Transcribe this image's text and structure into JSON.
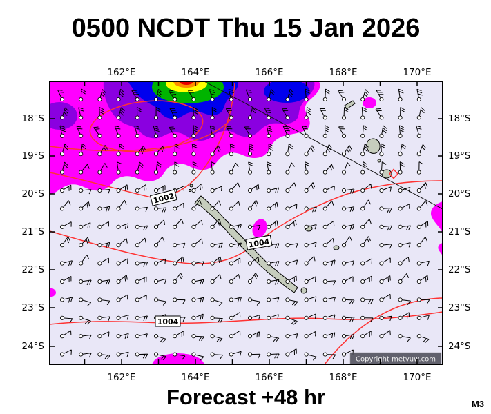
{
  "header": {
    "title": "0500 NCDT Thu 15 Jan 2026"
  },
  "footer": {
    "forecast_label": "Forecast +48 hr",
    "model_tag": "M3"
  },
  "map": {
    "copyright_text": "Copyright metvuw.com",
    "axes": {
      "lon_labels": [
        "162°E",
        "164°E",
        "166°E",
        "168°E",
        "170°E"
      ],
      "lat_labels": [
        "18°S",
        "19°S",
        "20°S",
        "21°S",
        "22°S",
        "23°S",
        "24°S"
      ]
    },
    "isobars": [
      {
        "label": "1002"
      },
      {
        "label": "1004"
      },
      {
        "label": "1004"
      }
    ],
    "colors": {
      "background": "#e9e7f7",
      "rain_level_1": "#ff00ff",
      "rain_level_2": "#8a00e0",
      "rain_level_3": "#0000ee",
      "rain_level_4": "#00b400",
      "rain_level_5": "#ffff00",
      "rain_level_6": "#ff8c00",
      "rain_level_7": "#e80000",
      "isobar": "#ff3333",
      "land": "#c6cdbd",
      "frame": "#000000"
    }
  }
}
